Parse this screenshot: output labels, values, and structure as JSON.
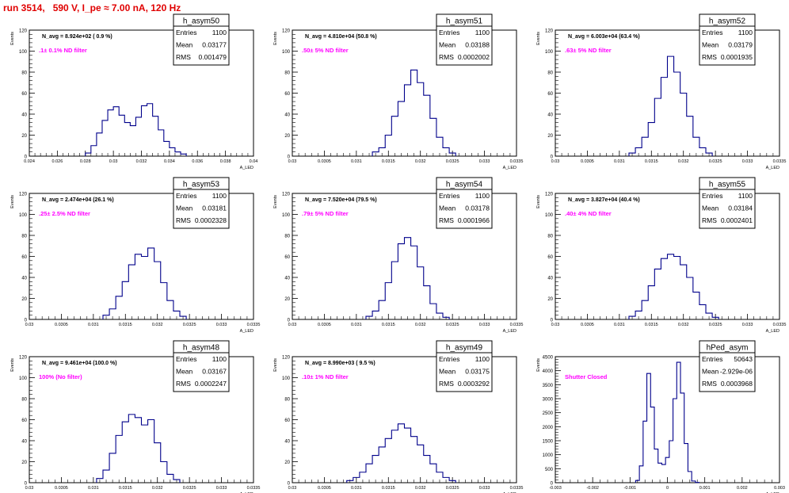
{
  "run_title": "run 3514,   590 V, I_pe ≈ 7.00 nA, 120 Hz",
  "colors": {
    "line": "#00008b",
    "annotation": "#ff00ff",
    "title": "#e00000",
    "text": "#000000"
  },
  "stat_labels": {
    "entries": "Entries",
    "mean": "Mean",
    "rms": "RMS"
  },
  "chart_data": [
    {
      "type": "histogram",
      "name": "h_asym50",
      "navg": "N_avg = 8.924e+02 ( 0.9 %)",
      "filter": ".1± 0.1% ND filter",
      "entries": "1100",
      "mean": "0.03177",
      "rms": "0.001479",
      "ylabel": "Events",
      "xlabel": "A_LED",
      "xlim": [
        0.024,
        0.04
      ],
      "ylim": [
        0,
        120
      ],
      "xticks": [
        "0.024",
        "0.026",
        "0.028",
        "0.03",
        "0.032",
        "0.034",
        "0.036",
        "0.038",
        "0.04"
      ],
      "yticks": [
        "0",
        "20",
        "40",
        "60",
        "80",
        "100",
        "120"
      ],
      "x": [
        0.0282,
        0.0286,
        0.029,
        0.0294,
        0.0298,
        0.0302,
        0.0306,
        0.031,
        0.0314,
        0.0318,
        0.0322,
        0.0326,
        0.033,
        0.0334,
        0.0338,
        0.0342,
        0.0346,
        0.035
      ],
      "values": [
        3,
        10,
        22,
        34,
        44,
        47,
        39,
        32,
        29,
        37,
        48,
        50,
        38,
        25,
        14,
        8,
        4,
        2
      ]
    },
    {
      "type": "histogram",
      "name": "h_asym51",
      "navg": "N_avg = 4.810e+04 (50.8 %)",
      "filter": ".50± 5% ND filter",
      "entries": "1100",
      "mean": "0.03188",
      "rms": "0.0002002",
      "ylabel": "Events",
      "xlabel": "A_LED",
      "xlim": [
        0.03,
        0.0335
      ],
      "ylim": [
        0,
        120
      ],
      "xticks": [
        "0.03",
        "0.0305",
        "0.031",
        "0.0315",
        "0.032",
        "0.0325",
        "0.033",
        "0.0335"
      ],
      "yticks": [
        "0",
        "20",
        "40",
        "60",
        "80",
        "100",
        "120"
      ],
      "x": [
        0.0313,
        0.0314,
        0.0315,
        0.0316,
        0.0317,
        0.0318,
        0.0319,
        0.032,
        0.0321,
        0.0322,
        0.0323,
        0.0324,
        0.0325
      ],
      "values": [
        4,
        8,
        20,
        38,
        52,
        68,
        82,
        70,
        58,
        36,
        18,
        8,
        3
      ]
    },
    {
      "type": "histogram",
      "name": "h_asym52",
      "navg": "N_avg = 6.003e+04 (63.4 %)",
      "filter": ".63± 5% ND filter",
      "entries": "1100",
      "mean": "0.03179",
      "rms": "0.0001935",
      "ylabel": "Events",
      "xlabel": "A_LED",
      "xlim": [
        0.03,
        0.0335
      ],
      "ylim": [
        0,
        120
      ],
      "xticks": [
        "0.03",
        "0.0305",
        "0.031",
        "0.0315",
        "0.032",
        "0.0325",
        "0.033",
        "0.0335"
      ],
      "yticks": [
        "0",
        "20",
        "40",
        "60",
        "80",
        "100",
        "120"
      ],
      "x": [
        0.0312,
        0.0313,
        0.0314,
        0.0315,
        0.0316,
        0.0317,
        0.0318,
        0.0319,
        0.032,
        0.0321,
        0.0322,
        0.0323,
        0.0324
      ],
      "values": [
        3,
        8,
        18,
        32,
        55,
        75,
        95,
        80,
        60,
        38,
        18,
        8,
        3
      ]
    },
    {
      "type": "histogram",
      "name": "h_asym53",
      "navg": "N_avg = 2.474e+04 (26.1 %)",
      "filter": ".25± 2.5% ND filter",
      "entries": "1100",
      "mean": "0.03181",
      "rms": "0.0002328",
      "ylabel": "Events",
      "xlabel": "A_LED",
      "xlim": [
        0.03,
        0.0335
      ],
      "ylim": [
        0,
        120
      ],
      "xticks": [
        "0.03",
        "0.0305",
        "0.031",
        "0.0315",
        "0.032",
        "0.0325",
        "0.033",
        "0.0335"
      ],
      "yticks": [
        "0",
        "20",
        "40",
        "60",
        "80",
        "100",
        "120"
      ],
      "x": [
        0.0312,
        0.0313,
        0.0314,
        0.0315,
        0.0316,
        0.0317,
        0.0318,
        0.0319,
        0.032,
        0.0321,
        0.0322,
        0.0323,
        0.0324
      ],
      "values": [
        4,
        10,
        22,
        36,
        52,
        62,
        60,
        68,
        55,
        35,
        18,
        8,
        3
      ]
    },
    {
      "type": "histogram",
      "name": "h_asym54",
      "navg": "N_avg = 7.520e+04 (79.5 %)",
      "filter": ".79± 5% ND filter",
      "entries": "1100",
      "mean": "0.03178",
      "rms": "0.0001966",
      "ylabel": "Events",
      "xlabel": "A_LED",
      "xlim": [
        0.03,
        0.0335
      ],
      "ylim": [
        0,
        120
      ],
      "xticks": [
        "0.03",
        "0.0305",
        "0.031",
        "0.0315",
        "0.032",
        "0.0325",
        "0.033",
        "0.0335"
      ],
      "yticks": [
        "0",
        "20",
        "40",
        "60",
        "80",
        "100",
        "120"
      ],
      "x": [
        0.0312,
        0.0313,
        0.0314,
        0.0315,
        0.0316,
        0.0317,
        0.0318,
        0.0319,
        0.032,
        0.0321,
        0.0322,
        0.0323,
        0.0324
      ],
      "values": [
        3,
        8,
        18,
        35,
        55,
        72,
        78,
        70,
        50,
        32,
        15,
        6,
        2
      ]
    },
    {
      "type": "histogram",
      "name": "h_asym55",
      "navg": "N_avg = 3.827e+04 (40.4 %)",
      "filter": ".40± 4% ND filter",
      "entries": "1100",
      "mean": "0.03184",
      "rms": "0.0002401",
      "ylabel": "Events",
      "xlabel": "A_LED",
      "xlim": [
        0.03,
        0.0335
      ],
      "ylim": [
        0,
        120
      ],
      "xticks": [
        "0.03",
        "0.0305",
        "0.031",
        "0.0315",
        "0.032",
        "0.0325",
        "0.033",
        "0.0335"
      ],
      "yticks": [
        "0",
        "20",
        "40",
        "60",
        "80",
        "100",
        "120"
      ],
      "x": [
        0.0312,
        0.0313,
        0.0314,
        0.0315,
        0.0316,
        0.0317,
        0.0318,
        0.0319,
        0.032,
        0.0321,
        0.0322,
        0.0323,
        0.0324,
        0.0325
      ],
      "values": [
        3,
        8,
        18,
        32,
        48,
        58,
        62,
        60,
        52,
        40,
        26,
        14,
        6,
        2
      ]
    },
    {
      "type": "histogram",
      "name": "h_asym48",
      "navg": "N_avg = 9.461e+04 (100.0 %)",
      "filter": "100% (No filter)",
      "entries": "1100",
      "mean": "0.03167",
      "rms": "0.0002247",
      "ylabel": "Events",
      "xlabel": "A_LED",
      "xlim": [
        0.03,
        0.0335
      ],
      "ylim": [
        0,
        120
      ],
      "xticks": [
        "0.03",
        "0.0305",
        "0.031",
        "0.0315",
        "0.032",
        "0.0325",
        "0.033",
        "0.0335"
      ],
      "yticks": [
        "0",
        "20",
        "40",
        "60",
        "80",
        "100",
        "120"
      ],
      "x": [
        0.0311,
        0.0312,
        0.0313,
        0.0314,
        0.0315,
        0.0316,
        0.0317,
        0.0318,
        0.0319,
        0.032,
        0.0321,
        0.0322,
        0.0323
      ],
      "values": [
        4,
        12,
        28,
        45,
        58,
        65,
        62,
        55,
        60,
        38,
        20,
        8,
        3
      ]
    },
    {
      "type": "histogram",
      "name": "h_asym49",
      "navg": "N_avg = 8.990e+03 ( 9.5 %)",
      "filter": ".10± 1% ND filter",
      "entries": "1100",
      "mean": "0.03175",
      "rms": "0.0003292",
      "ylabel": "Events",
      "xlabel": "A_LED",
      "xlim": [
        0.03,
        0.0335
      ],
      "ylim": [
        0,
        120
      ],
      "xticks": [
        "0.03",
        "0.0305",
        "0.031",
        "0.0315",
        "0.032",
        "0.0325",
        "0.033",
        "0.0335"
      ],
      "yticks": [
        "0",
        "20",
        "40",
        "60",
        "80",
        "100",
        "120"
      ],
      "x": [
        0.0309,
        0.031,
        0.0311,
        0.0312,
        0.0313,
        0.0314,
        0.0315,
        0.0316,
        0.0317,
        0.0318,
        0.0319,
        0.032,
        0.0321,
        0.0322,
        0.0323,
        0.0324,
        0.0325
      ],
      "values": [
        2,
        5,
        10,
        18,
        26,
        34,
        42,
        50,
        56,
        52,
        44,
        36,
        26,
        18,
        10,
        5,
        2
      ]
    },
    {
      "type": "histogram",
      "name": "hPed_asym",
      "navg": "",
      "filter": "Shutter Closed",
      "entries": "50643",
      "mean": "-2.929e-06",
      "rms": "0.0003968",
      "ylabel": "Events",
      "xlabel": "A_LED",
      "xlim": [
        -0.003,
        0.003
      ],
      "ylim": [
        0,
        4500
      ],
      "xticks": [
        "-0.003",
        "-0.002",
        "-0.001",
        "0",
        "0.001",
        "0.002",
        "0.003"
      ],
      "yticks": [
        "0",
        "500",
        "1000",
        "1500",
        "2000",
        "2500",
        "3000",
        "3500",
        "4000",
        "4500"
      ],
      "x": [
        -0.0008,
        -0.0007,
        -0.0006,
        -0.0005,
        -0.0004,
        -0.0003,
        -0.0002,
        -0.0001,
        0.0,
        0.0001,
        0.0002,
        0.0003,
        0.0004,
        0.0005,
        0.0006,
        0.0007,
        0.0008
      ],
      "values": [
        80,
        600,
        2200,
        3900,
        2700,
        1200,
        700,
        650,
        900,
        1500,
        3000,
        4300,
        3200,
        1400,
        400,
        60,
        10
      ]
    }
  ]
}
